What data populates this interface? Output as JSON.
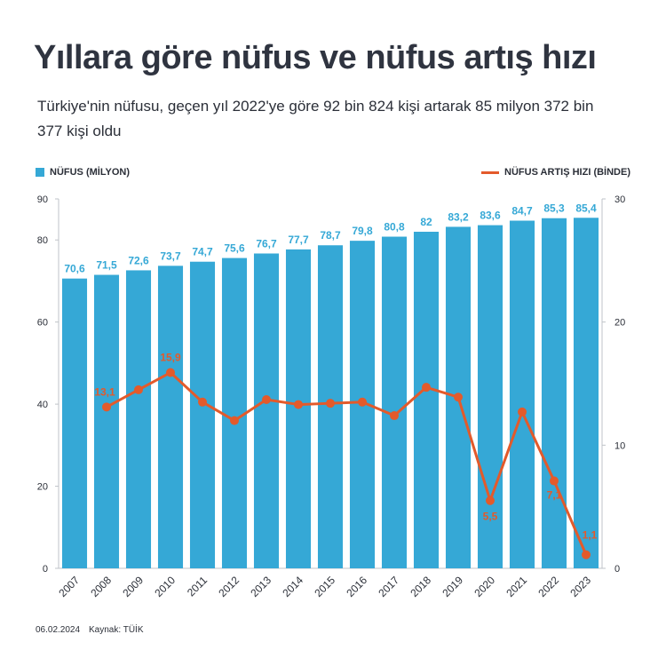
{
  "header": {
    "title": "Yıllara göre nüfus ve nüfus artış hızı",
    "subtitle": "Türkiye'nin nüfusu, geçen yıl 2022'ye göre 92 bin 824 kişi artarak 85 milyon 372 bin 377 kişi oldu"
  },
  "legend": {
    "bars_label": "NÜFUS (MİLYON)",
    "line_label": "NÜFUS ARTIŞ HIZI (BİNDE)"
  },
  "footer": {
    "date": "06.02.2024",
    "source": "Kaynak: TÜİK"
  },
  "colors": {
    "bar": "#35a8d6",
    "line": "#e35a2b",
    "bar_label": "#35a8d6",
    "line_label": "#e35a2b"
  },
  "chart_data": {
    "type": "bar",
    "categories": [
      "2007",
      "2008",
      "2009",
      "2010",
      "2011",
      "2012",
      "2013",
      "2014",
      "2015",
      "2016",
      "2017",
      "2018",
      "2019",
      "2020",
      "2021",
      "2022",
      "2023"
    ],
    "series": [
      {
        "name": "NÜFUS (MİLYON)",
        "type": "bar",
        "axis": "left",
        "values": [
          70.6,
          71.5,
          72.6,
          73.7,
          74.7,
          75.6,
          76.7,
          77.7,
          78.7,
          79.8,
          80.8,
          82,
          83.2,
          83.6,
          84.7,
          85.3,
          85.4
        ],
        "value_labels": [
          "70,6",
          "71,5",
          "72,6",
          "73,7",
          "74,7",
          "75,6",
          "76,7",
          "77,7",
          "78,7",
          "79,8",
          "80,8",
          "82",
          "83,2",
          "83,6",
          "84,7",
          "85,3",
          "85,4"
        ]
      },
      {
        "name": "NÜFUS ARTIŞ HIZI (BİNDE)",
        "type": "line",
        "axis": "right",
        "values": [
          null,
          13.1,
          14.5,
          15.9,
          13.5,
          12.0,
          13.7,
          13.3,
          13.4,
          13.5,
          12.4,
          14.7,
          13.9,
          5.5,
          12.7,
          7.1,
          1.1
        ],
        "value_labels": [
          "",
          "13,1",
          "",
          "15,9",
          "",
          "",
          "",
          "",
          "",
          "",
          "",
          "",
          "",
          "5,5",
          "",
          "7,1",
          "1,1"
        ]
      }
    ],
    "y_left": {
      "ylim": [
        0,
        90
      ],
      "ticks": [
        0,
        20,
        40,
        60,
        80,
        90
      ]
    },
    "y_right": {
      "ylim": [
        0,
        30
      ],
      "ticks": [
        0,
        10,
        20,
        30
      ]
    },
    "grid": false,
    "legend_placement": "top"
  }
}
